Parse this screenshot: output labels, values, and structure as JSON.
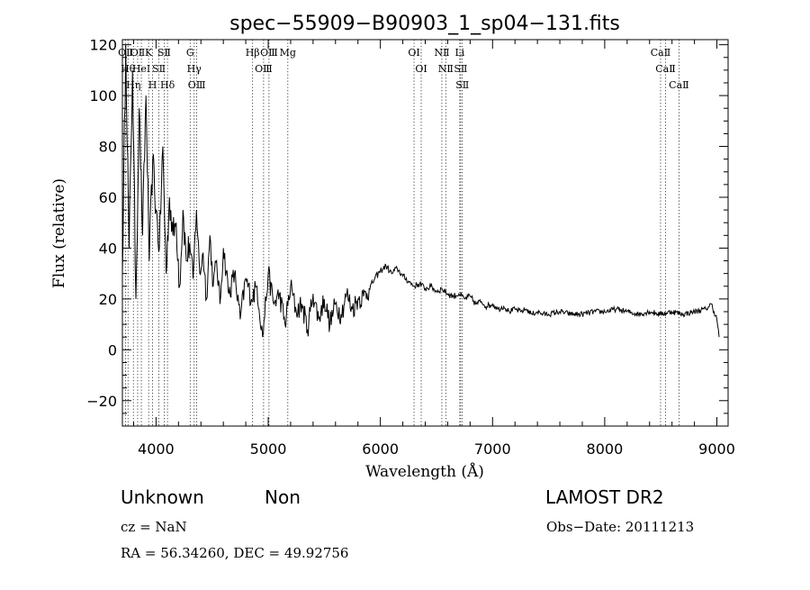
{
  "chart_data": {
    "type": "line",
    "title": "spec−55909−B90903_1_sp04−131.fits",
    "xlabel": "Wavelength (Å)",
    "ylabel": "Flux (relative)",
    "xlim": [
      3700,
      9100
    ],
    "ylim": [
      -30,
      122
    ],
    "xticks": [
      4000,
      5000,
      6000,
      7000,
      8000,
      9000
    ],
    "yticks": [
      -20,
      0,
      20,
      40,
      60,
      80,
      100,
      120
    ],
    "tick_labels": {
      "x": [
        "4000",
        "5000",
        "6000",
        "7000",
        "8000",
        "9000"
      ],
      "y": [
        "−20",
        "0",
        "20",
        "40",
        "60",
        "80",
        "100",
        "120"
      ]
    },
    "grid": false,
    "series": [
      {
        "color": "#000000",
        "x": [
          3700,
          3730,
          3760,
          3790,
          3820,
          3850,
          3880,
          3910,
          3940,
          3970,
          4000,
          4030,
          4060,
          4090,
          4120,
          4150,
          4180,
          4210,
          4240,
          4270,
          4300,
          4330,
          4360,
          4390,
          4420,
          4450,
          4480,
          4510,
          4540,
          4570,
          4600,
          4650,
          4700,
          4750,
          4800,
          4850,
          4900,
          4950,
          5000,
          5050,
          5100,
          5150,
          5200,
          5250,
          5300,
          5350,
          5400,
          5450,
          5500,
          5550,
          5600,
          5650,
          5700,
          5750,
          5800,
          5850,
          5900,
          5950,
          6000,
          6050,
          6100,
          6150,
          6200,
          6250,
          6300,
          6350,
          6400,
          6450,
          6500,
          6550,
          6600,
          6650,
          6700,
          6750,
          6800,
          6850,
          6900,
          6950,
          7000,
          7050,
          7100,
          7150,
          7200,
          7250,
          7300,
          7350,
          7400,
          7450,
          7500,
          7600,
          7700,
          7800,
          7900,
          8000,
          8100,
          8200,
          8300,
          8400,
          8500,
          8600,
          8700,
          8800,
          8900,
          8950,
          9000,
          9020
        ],
        "y": [
          30,
          120,
          40,
          110,
          20,
          95,
          45,
          100,
          35,
          75,
          55,
          40,
          80,
          30,
          60,
          45,
          50,
          25,
          55,
          35,
          42,
          28,
          55,
          30,
          38,
          20,
          45,
          25,
          35,
          18,
          40,
          22,
          30,
          12,
          28,
          20,
          25,
          5,
          30,
          18,
          22,
          10,
          25,
          15,
          18,
          8,
          22,
          12,
          20,
          10,
          18,
          14,
          22,
          16,
          20,
          21,
          24,
          28,
          31,
          33,
          30,
          32,
          29,
          27,
          25,
          26,
          24,
          25,
          23,
          24,
          22,
          21,
          22,
          20,
          21,
          18,
          19,
          17,
          18,
          16,
          17,
          15,
          16,
          15,
          16,
          14,
          15,
          14,
          14,
          15,
          14,
          14,
          15,
          15,
          16,
          15,
          14,
          15,
          14,
          15,
          14,
          15,
          16,
          18,
          12,
          5
        ]
      }
    ],
    "lines": [
      {
        "wavelength": 3727,
        "labels": [
          "OⅡ"
        ]
      },
      {
        "wavelength": 3750,
        "labels": [
          "Hθ"
        ]
      },
      {
        "wavelength": 3798,
        "labels": [
          "Hη"
        ]
      },
      {
        "wavelength": 3836,
        "labels": [
          "OⅡ"
        ]
      },
      {
        "wavelength": 3869,
        "labels": [
          "HeⅠ"
        ]
      },
      {
        "wavelength": 3934,
        "labels": [
          "K"
        ]
      },
      {
        "wavelength": 3969,
        "labels": [
          "H"
        ]
      },
      {
        "wavelength": 4026,
        "labels": [
          "SⅡ"
        ]
      },
      {
        "wavelength": 4072,
        "labels": [
          "SⅡ"
        ]
      },
      {
        "wavelength": 4102,
        "labels": [
          "Hδ"
        ]
      },
      {
        "wavelength": 4304,
        "labels": [
          "G"
        ]
      },
      {
        "wavelength": 4340,
        "labels": [
          "Hγ"
        ]
      },
      {
        "wavelength": 4363,
        "labels": [
          "OⅢ"
        ]
      },
      {
        "wavelength": 4861,
        "labels": [
          "Hβ"
        ]
      },
      {
        "wavelength": 4959,
        "labels": [
          "OⅢ"
        ]
      },
      {
        "wavelength": 5007,
        "labels": [
          "OⅢ"
        ]
      },
      {
        "wavelength": 5175,
        "labels": [
          "Mg"
        ]
      },
      {
        "wavelength": 6300,
        "labels": [
          "OⅠ"
        ]
      },
      {
        "wavelength": 6364,
        "labels": [
          "OⅠ"
        ]
      },
      {
        "wavelength": 6548,
        "labels": [
          "NⅡ"
        ]
      },
      {
        "wavelength": 6583,
        "labels": [
          "NⅡ"
        ]
      },
      {
        "wavelength": 6708,
        "labels": [
          "Li"
        ]
      },
      {
        "wavelength": 6716,
        "labels": [
          "SⅡ"
        ]
      },
      {
        "wavelength": 6731,
        "labels": [
          "SⅡ"
        ]
      },
      {
        "wavelength": 8498,
        "labels": [
          "CaⅡ"
        ]
      },
      {
        "wavelength": 8542,
        "labels": [
          "CaⅡ"
        ]
      },
      {
        "wavelength": 8662,
        "labels": [
          "CaⅡ"
        ]
      }
    ]
  },
  "info": {
    "classification": "Unknown",
    "subclass": "Non",
    "survey": "LAMOST DR2",
    "cz": "cz = NaN",
    "obs_date": "Obs−Date: 20111213",
    "radec": "RA =  56.34260, DEC =  49.92756"
  }
}
